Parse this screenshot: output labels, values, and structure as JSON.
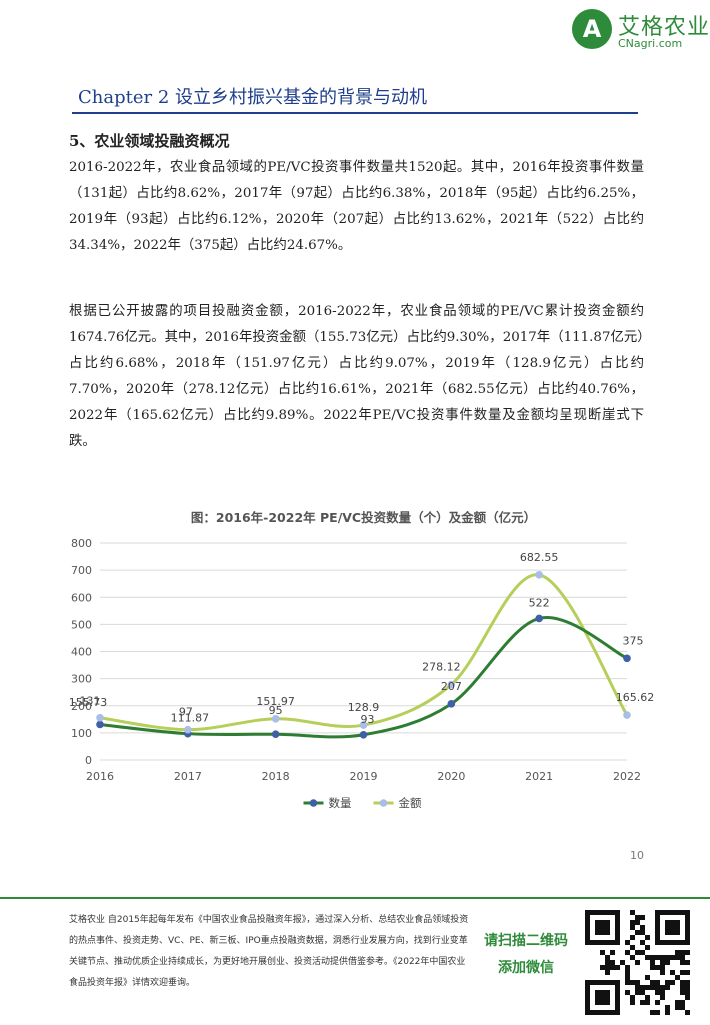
{
  "header": {
    "logo_letter": "A",
    "logo_cn": "艾格农业",
    "logo_url": "CNagri.com",
    "chapter_title": "Chapter 2 设立乡村振兴基金的背景与动机"
  },
  "section": {
    "title": "5、农业领域投融资概况",
    "paragraph1": "2016-2022年，农业食品领域的PE/VC投资事件数量共1520起。其中，2016年投资事件数量（131起）占比约8.62%，2017年（97起）占比约6.38%，2018年（95起）占比约6.25%，2019年（93起）占比约6.12%，2020年（207起）占比约13.62%，2021年（522）占比约34.34%，2022年（375起）占比约24.67%。",
    "paragraph2": "根据已公开披露的项目投融资金额，2016-2022年，农业食品领域的PE/VC累计投资金额约1674.76亿元。其中，2016年投资金额（155.73亿元）占比约9.30%，2017年（111.87亿元）占比约6.68%，2018年（151.97亿元）占比约9.07%，2019年（128.9亿元）占比约7.70%，2020年（278.12亿元）占比约16.61%，2021年（682.55亿元）占比约40.76%，2022年（165.62亿元）占比约9.89%。2022年PE/VC投资事件数量及金额均呈现断崖式下跌。"
  },
  "chart_data": {
    "type": "line",
    "title": "图：2016年-2022年 PE/VC投资数量（个）及金额（亿元）",
    "categories": [
      "2016",
      "2017",
      "2018",
      "2019",
      "2020",
      "2021",
      "2022"
    ],
    "series": [
      {
        "name": "数量",
        "values": [
          131,
          97,
          95,
          93,
          207,
          522,
          375
        ],
        "color": "#2e7d32"
      },
      {
        "name": "金额",
        "values": [
          155.73,
          111.87,
          151.97,
          128.9,
          278.12,
          682.55,
          165.62
        ],
        "color": "#b5cf5a"
      }
    ],
    "ylim": [
      0,
      800
    ],
    "yticks": [
      0,
      100,
      200,
      300,
      400,
      500,
      600,
      700,
      800
    ],
    "grid": true,
    "legend": "bottom",
    "marker_colors": {
      "数量": "#3f5fa6",
      "金额": "#a9bde6"
    }
  },
  "page_number": "10",
  "footer": {
    "text": "艾格农业 自2015年起每年发布《中国农业食品投融资年报》，通过深入分析、总结农业食品领域投资的热点事件、投资走势、VC、PE、新三板、IPO重点投融资数据，洞悉行业发展方向，找到行业变革关键节点、推动优质企业持续成长，为更好地开展创业、投资活动提供借鉴参考。《2022年中国农业食品投资年报》详情欢迎垂询。",
    "cta_line1": "请扫描二维码",
    "cta_line2": "添加微信"
  }
}
